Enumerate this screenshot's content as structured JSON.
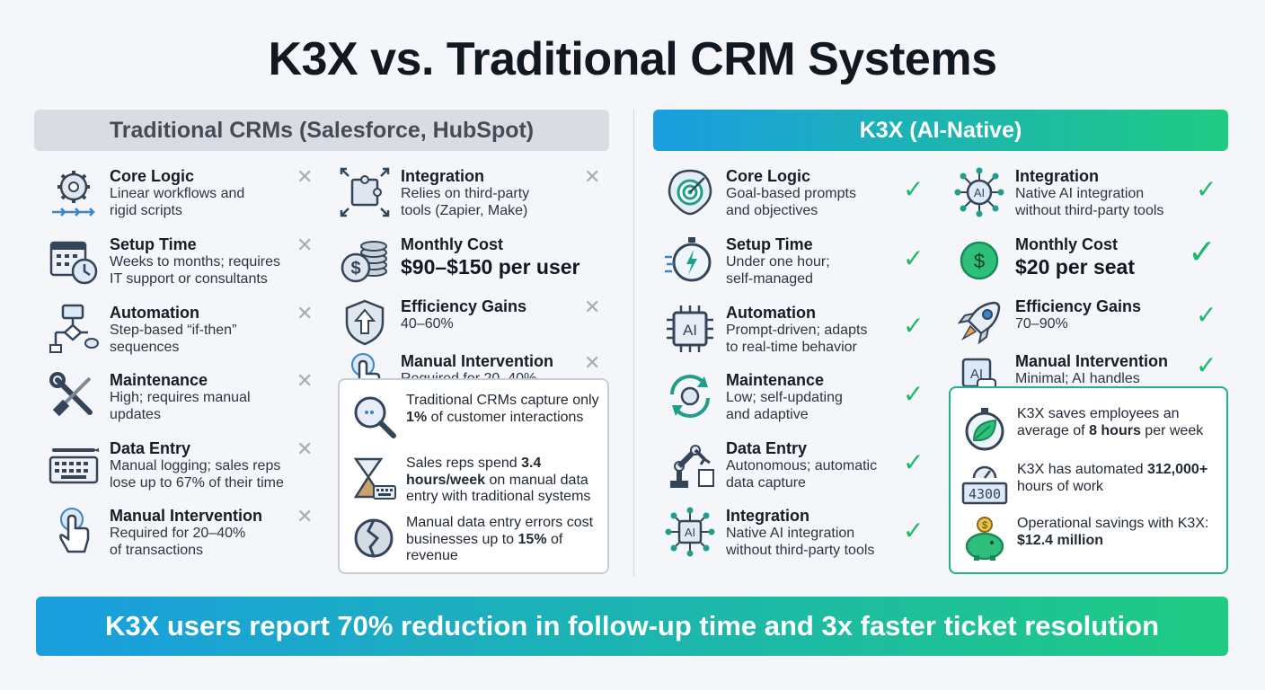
{
  "title": "K3X vs. Traditional CRM Systems",
  "left": {
    "header": "Traditional CRMs (Salesforce, HubSpot)",
    "col1": [
      {
        "label": "Core Logic",
        "desc": "Linear workflows and\nrigid scripts",
        "icon": "gear-workflow-icon"
      },
      {
        "label": "Setup Time",
        "desc": "Weeks to months; requires\nIT support or consultants",
        "icon": "calendar-clock-icon"
      },
      {
        "label": "Automation",
        "desc": "Step-based “if-then”\nsequences",
        "icon": "flowchart-icon"
      },
      {
        "label": "Maintenance",
        "desc": "High; requires manual\nupdates",
        "icon": "wrench-screwdriver-icon"
      },
      {
        "label": "Data Entry",
        "desc": "Manual logging; sales reps\nlose up to 67% of their time",
        "icon": "keyboard-pen-icon"
      },
      {
        "label": "Manual Intervention",
        "desc": "Required for 20–40%\nof transactions",
        "icon": "hand-tap-icon"
      }
    ],
    "col2": [
      {
        "label": "Integration",
        "desc": "Relies on third-party\ntools (Zapier, Make)",
        "icon": "puzzle-icon"
      },
      {
        "label": "Monthly Cost",
        "desc": "$90–$150 per user",
        "icon": "coins-icon"
      },
      {
        "label": "Efficiency Gains",
        "desc": "40–60%",
        "icon": "shield-arrow-icon"
      },
      {
        "label": "Manual Intervention",
        "desc": "Required for 20–40%",
        "icon": "hand-tap-icon"
      }
    ],
    "stats": [
      {
        "pre": "Traditional CRMs capture only ",
        "bold": "1%",
        "post": " of customer interactions",
        "icon": "magnifier-icon"
      },
      {
        "pre": "Sales reps spend ",
        "bold": "3.4 hours/week",
        "post": " on manual data entry with traditional systems",
        "icon": "hourglass-keyboard-icon"
      },
      {
        "pre": "Manual data entry errors cost businesses up to ",
        "bold": "15%",
        "post": " of revenue",
        "icon": "broken-coin-icon"
      }
    ]
  },
  "right": {
    "header": "K3X (AI-Native)",
    "col1": [
      {
        "label": "Core Logic",
        "desc": "Goal-based prompts\nand objectives",
        "icon": "brain-target-icon"
      },
      {
        "label": "Setup Time",
        "desc": "Under one hour;\nself-managed",
        "icon": "stopwatch-icon"
      },
      {
        "label": "Automation",
        "desc": "Prompt-driven; adapts\nto real-time behavior",
        "icon": "ai-chip-icon"
      },
      {
        "label": "Maintenance",
        "desc": "Low; self-updating\nand adaptive",
        "icon": "refresh-gear-icon"
      },
      {
        "label": "Data Entry",
        "desc": "Autonomous; automatic\ndata capture",
        "icon": "robot-arm-icon"
      },
      {
        "label": "Integration",
        "desc": "Native AI integration\nwithout third-party tools",
        "icon": "ai-network-icon"
      }
    ],
    "col2": [
      {
        "label": "Integration",
        "desc": "Native AI integration\nwithout third-party tools",
        "icon": "ai-network-icon"
      },
      {
        "label": "Monthly Cost",
        "desc": "$20 per seat",
        "icon": "dollar-coin-icon"
      },
      {
        "label": "Efficiency Gains",
        "desc": "70–90%",
        "icon": "rocket-icon"
      },
      {
        "label": "Manual Intervention",
        "desc": "Minimal; AI handles",
        "icon": "ai-hand-icon"
      }
    ],
    "stats": [
      {
        "pre": "K3X saves employees an average of ",
        "bold": "8 hours",
        "post": " per week",
        "icon": "leaf-stopwatch-icon"
      },
      {
        "pre": "K3X has automated ",
        "bold": "312,000+",
        "post": " hours of work",
        "icon": "counter-gauge-icon",
        "counter": "4300"
      },
      {
        "pre": "Operational savings with K3X: ",
        "bold": "$12.4 million",
        "post": "",
        "icon": "piggy-bank-icon"
      }
    ]
  },
  "banner": "K3X users report 70% reduction in follow-up time and 3x faster ticket resolution",
  "colors": {
    "check": "#1fb86a",
    "cross": "#a6adb6",
    "gradient_start": "#1a9ee0",
    "gradient_end": "#1fcb82"
  }
}
